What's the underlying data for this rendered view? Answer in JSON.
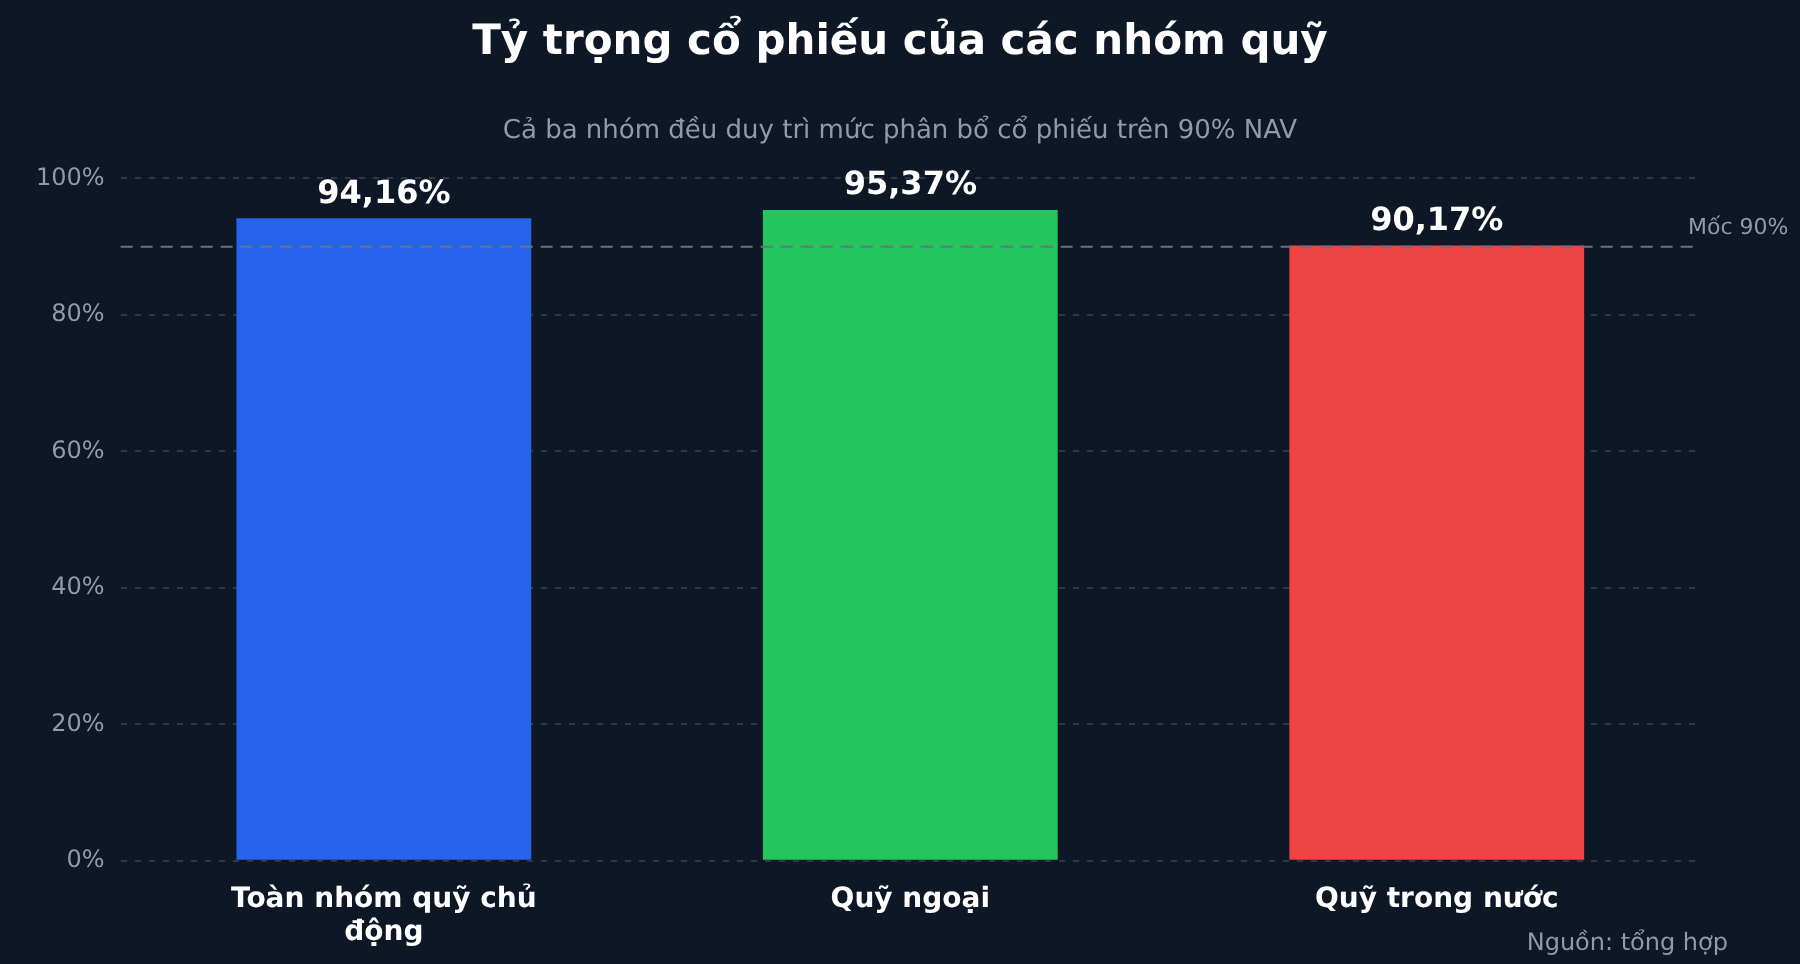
{
  "chart_data": {
    "type": "bar",
    "title": "Tỷ trọng cổ phiếu của các nhóm quỹ",
    "subtitle": "Cả ba nhóm đều duy trì mức phân bổ cổ phiếu trên 90% NAV",
    "categories": [
      "Toàn nhóm quỹ chủ động",
      "Quỹ ngoại",
      "Quỹ trong nước"
    ],
    "values": [
      94.16,
      95.37,
      90.17
    ],
    "colors": [
      "#2563eb",
      "#22c55e",
      "#ef4444"
    ],
    "value_labels": [
      "94,16%",
      "95,37%",
      "90,17%"
    ],
    "ylim": [
      0,
      100
    ],
    "yticks": [
      {
        "value": 0,
        "label": "0%"
      },
      {
        "value": 20,
        "label": "20%"
      },
      {
        "value": 40,
        "label": "40%"
      },
      {
        "value": 60,
        "label": "60%"
      },
      {
        "value": 80,
        "label": "80%"
      },
      {
        "value": 100,
        "label": "100%"
      }
    ],
    "grid": "y",
    "legend": false,
    "ref_lines": [
      {
        "axis": "y",
        "value": 90,
        "label": "Mốc 90%",
        "color": "#6b7280",
        "line_style": "dashed"
      }
    ],
    "annotations": [
      "Nguồn: tổng hợp"
    ]
  }
}
